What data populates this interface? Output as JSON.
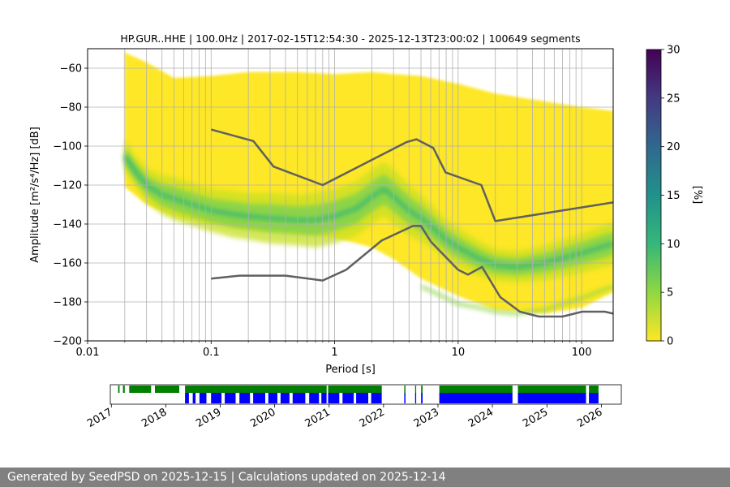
{
  "chart_data": [
    {
      "type": "heatmap",
      "title": "HP.GUR..HHE | 100.0Hz | 2017-02-15T12:54:30 - 2025-12-13T23:00:02 | 100649 segments",
      "xlabel": "Period [s]",
      "ylabel": "Amplitude [m²/s⁴/Hz] [dB]",
      "xscale": "log",
      "xlim": [
        0.01,
        180
      ],
      "ylim": [
        -200,
        -50
      ],
      "grid": true,
      "xticks": [
        0.01,
        0.1,
        1,
        10,
        100
      ],
      "xtick_labels": [
        "0.01",
        "0.1",
        "1",
        "10",
        "100"
      ],
      "yticks": [
        -200,
        -180,
        -160,
        -140,
        -120,
        -100,
        -80,
        -60
      ],
      "ytick_labels": [
        "−200",
        "−180",
        "−160",
        "−140",
        "−120",
        "−100",
        "−80",
        "−60"
      ],
      "colorbar": {
        "label": "[%]",
        "range": [
          0,
          30
        ],
        "ticks": [
          0,
          5,
          10,
          15,
          20,
          25,
          30
        ],
        "tick_labels": [
          "0",
          "5",
          "10",
          "15",
          "20",
          "25",
          "30"
        ],
        "colormap": [
          "#fde725",
          "#90d743",
          "#35b779",
          "#21918c",
          "#31688e",
          "#443983",
          "#440154"
        ]
      },
      "mode_curve": {
        "x": [
          0.02,
          0.025,
          0.03,
          0.04,
          0.05,
          0.07,
          0.1,
          0.15,
          0.2,
          0.3,
          0.5,
          0.7,
          1,
          1.5,
          2,
          2.5,
          3,
          4,
          5,
          6,
          8,
          10,
          15,
          20,
          30,
          50,
          100,
          180
        ],
        "y": [
          -105,
          -114,
          -120,
          -125,
          -127,
          -130,
          -133,
          -135,
          -136,
          -137,
          -138,
          -138,
          -136,
          -132,
          -126,
          -122,
          -126,
          -133,
          -137,
          -141,
          -148,
          -152,
          -158,
          -161,
          -162,
          -160,
          -155,
          -150
        ],
        "spread_db": [
          8,
          8,
          9,
          10,
          11,
          11,
          11,
          12,
          12,
          13,
          13,
          14,
          14,
          14,
          14,
          14,
          14,
          13,
          12,
          11,
          10,
          10,
          9,
          8,
          8,
          9,
          10,
          11
        ]
      },
      "data_envelope": {
        "x": [
          0.02,
          0.03,
          0.05,
          0.1,
          0.2,
          0.5,
          1,
          2,
          3,
          5,
          10,
          20,
          50,
          100,
          180
        ],
        "upper": [
          -52,
          -57,
          -65,
          -64,
          -62,
          -62,
          -63,
          -62,
          -63,
          -64,
          -68,
          -73,
          -77,
          -80,
          -82
        ],
        "lower": [
          -121,
          -130,
          -136,
          -140,
          -143,
          -145,
          -147,
          -152,
          -158,
          -168,
          -177,
          -184,
          -186,
          -183,
          -175
        ]
      },
      "secondary_mode": {
        "x": [
          5,
          8,
          10,
          15,
          20,
          30,
          50,
          100,
          180
        ],
        "y": [
          -172,
          -178,
          -181,
          -183,
          -185,
          -186,
          -184,
          -178,
          -172
        ]
      },
      "reference_lines": [
        {
          "role": "upper",
          "color": "#606060",
          "x": [
            0.1,
            0.22,
            0.32,
            0.8,
            3.8,
            4.6,
            6.3,
            7.9,
            15.4,
            20,
            180
          ],
          "y": [
            -91.5,
            -97.4,
            -110.5,
            -120,
            -98,
            -96.5,
            -101,
            -113.5,
            -120,
            -138.5,
            -128.9
          ]
        },
        {
          "role": "lower",
          "color": "#606060",
          "x": [
            0.1,
            0.17,
            0.4,
            0.8,
            1.24,
            2.4,
            4.3,
            5.0,
            6.0,
            10,
            12,
            15.6,
            21.9,
            31.6,
            45,
            70,
            101,
            154,
            180
          ],
          "y": [
            -168,
            -166.5,
            -166.5,
            -169,
            -163.5,
            -148.5,
            -141,
            -141,
            -149,
            -163.5,
            -166,
            -162,
            -177.5,
            -185,
            -187.5,
            -187.5,
            -185,
            -185,
            -186
          ]
        }
      ]
    },
    {
      "type": "availability_timeline",
      "year_ticks": [
        "2017",
        "2018",
        "2019",
        "2020",
        "2021",
        "2022",
        "2023",
        "2024",
        "2025",
        "2026"
      ],
      "xlim": [
        "2016-12-25",
        "2026-05-15"
      ],
      "rows": [
        {
          "role": "top",
          "color": "#008000",
          "segments": [
            [
              "2017-02-15",
              "2017-02-25"
            ],
            [
              "2017-03-20",
              "2017-04-01"
            ],
            [
              "2017-05-01",
              "2017-09-25"
            ],
            [
              "2017-10-20",
              "2018-04-01"
            ],
            [
              "2018-05-10",
              "2020-12-15"
            ],
            [
              "2020-12-25",
              "2021-12-20"
            ],
            [
              "2022-05-20",
              "2022-05-28"
            ],
            [
              "2022-08-01",
              "2022-08-08"
            ],
            [
              "2022-09-10",
              "2022-09-20"
            ],
            [
              "2023-01-10",
              "2024-05-15"
            ],
            [
              "2024-06-20",
              "2025-09-20"
            ],
            [
              "2025-10-10",
              "2025-12-13"
            ]
          ]
        },
        {
          "role": "bottom",
          "color": "#0000ff",
          "segments": [
            [
              "2018-05-10",
              "2018-06-05"
            ],
            [
              "2018-07-01",
              "2018-07-20"
            ],
            [
              "2018-08-15",
              "2018-10-01"
            ],
            [
              "2018-11-01",
              "2019-01-10"
            ],
            [
              "2019-02-01",
              "2019-04-15"
            ],
            [
              "2019-05-10",
              "2019-07-20"
            ],
            [
              "2019-08-10",
              "2019-10-30"
            ],
            [
              "2019-11-20",
              "2020-01-20"
            ],
            [
              "2020-02-10",
              "2020-04-10"
            ],
            [
              "2020-05-01",
              "2020-07-25"
            ],
            [
              "2020-08-20",
              "2020-10-25"
            ],
            [
              "2020-11-10",
              "2020-12-15"
            ],
            [
              "2020-12-25",
              "2021-03-10"
            ],
            [
              "2021-04-01",
              "2021-06-15"
            ],
            [
              "2021-07-01",
              "2021-09-20"
            ],
            [
              "2021-10-10",
              "2021-12-20"
            ],
            [
              "2022-05-20",
              "2022-05-28"
            ],
            [
              "2022-08-01",
              "2022-08-08"
            ],
            [
              "2022-09-10",
              "2022-09-20"
            ],
            [
              "2023-01-10",
              "2024-05-15"
            ],
            [
              "2024-06-20",
              "2025-09-20"
            ],
            [
              "2025-10-10",
              "2025-12-13"
            ]
          ]
        }
      ]
    }
  ],
  "footer": {
    "text": "Generated by SeedPSD on 2025-12-15 | Calculations updated on 2025-12-14"
  }
}
